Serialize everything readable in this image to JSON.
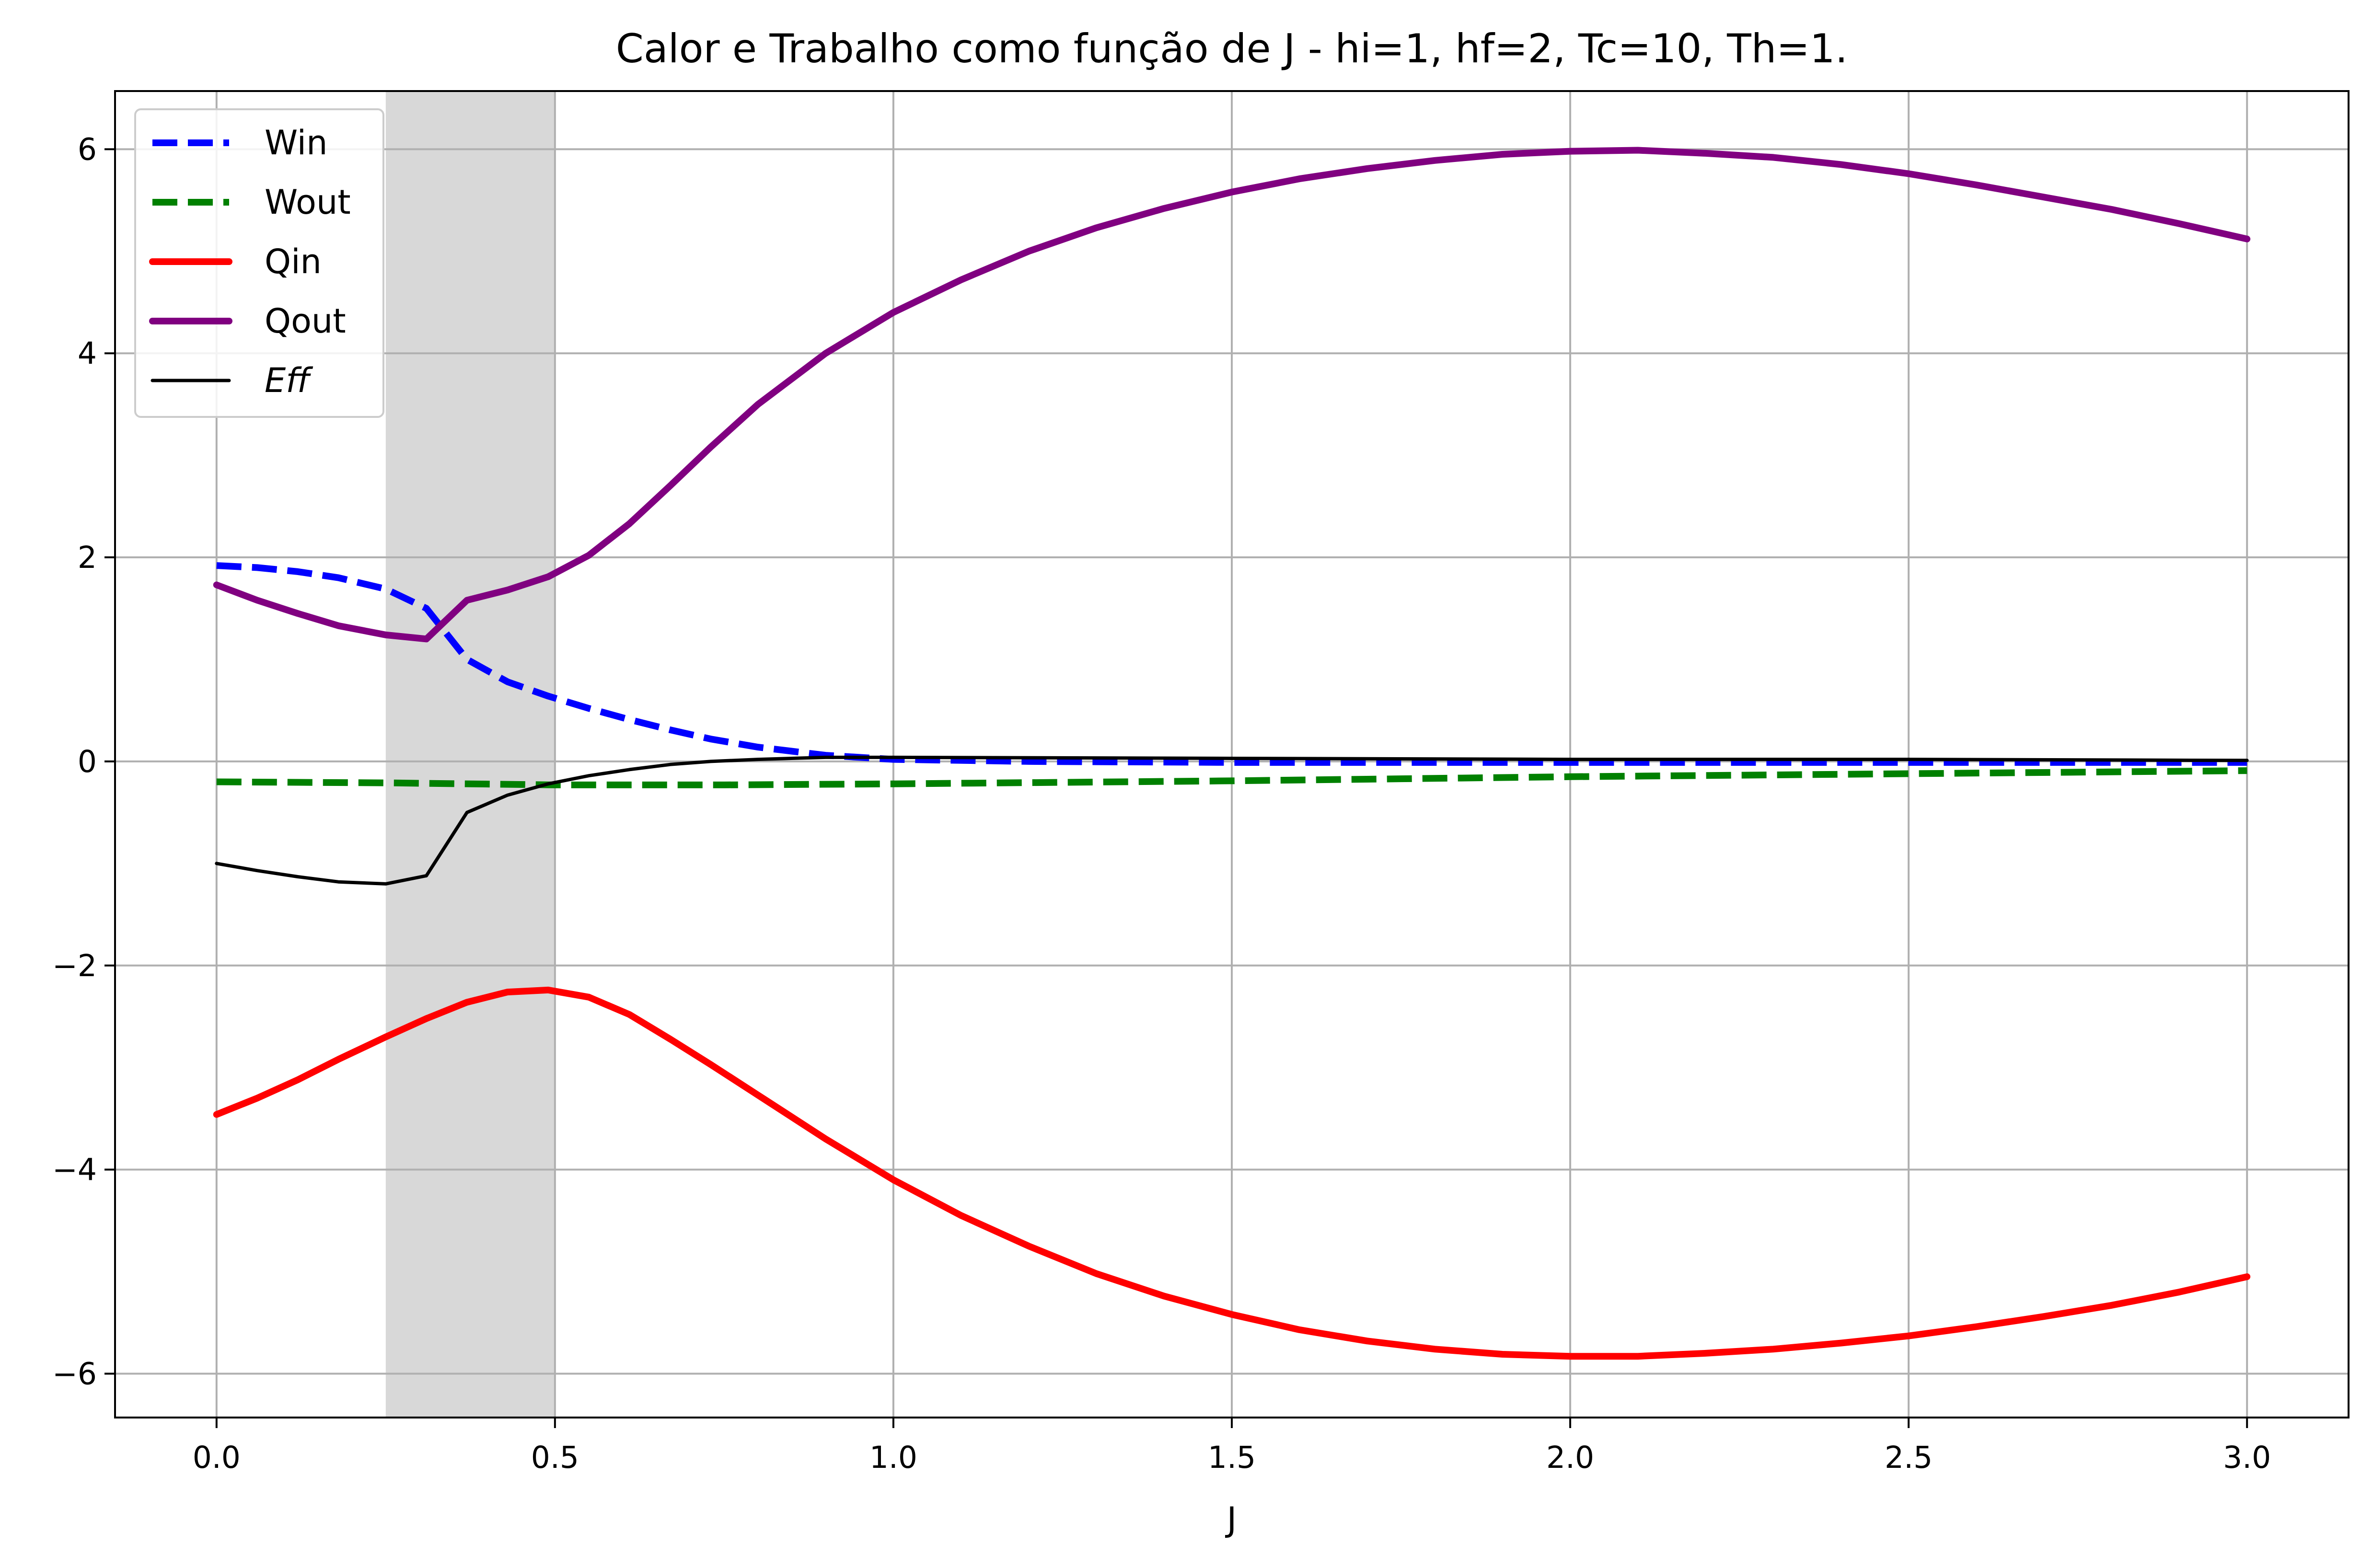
{
  "chart_data": {
    "type": "line",
    "title": "Calor e Trabalho como função de J - hi=1, hf=2, Tc=10, Th=1.",
    "xlabel": "J",
    "ylabel": "",
    "xlim": [
      -0.15,
      3.15
    ],
    "ylim": [
      -6.43,
      6.57
    ],
    "xticks": [
      0.0,
      0.5,
      1.0,
      1.5,
      2.0,
      2.5,
      3.0
    ],
    "xtick_labels": [
      "0.0",
      "0.5",
      "1.0",
      "1.5",
      "2.0",
      "2.5",
      "3.0"
    ],
    "yticks": [
      -6,
      -4,
      -2,
      0,
      2,
      4,
      6
    ],
    "ytick_labels": [
      "−6",
      "−4",
      "−2",
      "0",
      "2",
      "4",
      "6"
    ],
    "grid": true,
    "legend_position": "upper-left",
    "shaded_region": {
      "x_start": 0.25,
      "x_end": 0.5,
      "color": "#d8d8d8"
    },
    "series": [
      {
        "name": "Win",
        "color": "#0000ff",
        "style": "dashed",
        "width": "thick",
        "x": [
          0.0,
          0.06,
          0.12,
          0.18,
          0.25,
          0.31,
          0.37,
          0.43,
          0.49,
          0.55,
          0.61,
          0.67,
          0.73,
          0.8,
          0.9,
          1.0,
          1.2,
          1.5,
          2.0,
          2.5,
          3.0
        ],
        "y": [
          1.92,
          1.9,
          1.86,
          1.8,
          1.69,
          1.5,
          1.0,
          0.78,
          0.64,
          0.52,
          0.41,
          0.31,
          0.22,
          0.14,
          0.06,
          0.02,
          0.0,
          -0.01,
          -0.01,
          -0.01,
          -0.01
        ]
      },
      {
        "name": "Wout",
        "color": "#008000",
        "style": "dashed",
        "width": "thick",
        "x": [
          0.0,
          0.25,
          0.5,
          0.75,
          1.0,
          1.5,
          2.0,
          2.5,
          3.0
        ],
        "y": [
          -0.2,
          -0.21,
          -0.23,
          -0.23,
          -0.22,
          -0.19,
          -0.15,
          -0.12,
          -0.09
        ]
      },
      {
        "name": "Qin",
        "color": "#ff0000",
        "style": "solid",
        "width": "thick",
        "x": [
          0.0,
          0.06,
          0.12,
          0.18,
          0.25,
          0.31,
          0.37,
          0.43,
          0.49,
          0.55,
          0.61,
          0.67,
          0.73,
          0.8,
          0.9,
          1.0,
          1.1,
          1.2,
          1.3,
          1.4,
          1.5,
          1.6,
          1.7,
          1.8,
          1.9,
          2.0,
          2.1,
          2.2,
          2.3,
          2.4,
          2.5,
          2.6,
          2.7,
          2.8,
          2.9,
          3.0
        ],
        "y": [
          -3.46,
          -3.3,
          -3.12,
          -2.92,
          -2.7,
          -2.52,
          -2.36,
          -2.26,
          -2.24,
          -2.31,
          -2.48,
          -2.72,
          -2.97,
          -3.27,
          -3.7,
          -4.1,
          -4.45,
          -4.75,
          -5.02,
          -5.24,
          -5.42,
          -5.57,
          -5.68,
          -5.76,
          -5.81,
          -5.83,
          -5.83,
          -5.8,
          -5.76,
          -5.7,
          -5.63,
          -5.54,
          -5.44,
          -5.33,
          -5.2,
          -5.05
        ]
      },
      {
        "name": "Qout",
        "color": "#800080",
        "style": "solid",
        "width": "thick",
        "x": [
          0.0,
          0.06,
          0.12,
          0.18,
          0.25,
          0.31,
          0.37,
          0.43,
          0.49,
          0.55,
          0.61,
          0.67,
          0.73,
          0.8,
          0.9,
          1.0,
          1.1,
          1.2,
          1.3,
          1.4,
          1.5,
          1.6,
          1.7,
          1.8,
          1.9,
          2.0,
          2.1,
          2.2,
          2.3,
          2.4,
          2.5,
          2.6,
          2.7,
          2.8,
          2.9,
          3.0
        ],
        "y": [
          1.73,
          1.58,
          1.45,
          1.33,
          1.24,
          1.2,
          1.58,
          1.68,
          1.81,
          2.02,
          2.33,
          2.7,
          3.08,
          3.5,
          4.0,
          4.4,
          4.72,
          5.0,
          5.23,
          5.42,
          5.58,
          5.71,
          5.81,
          5.89,
          5.95,
          5.98,
          5.99,
          5.96,
          5.92,
          5.85,
          5.76,
          5.65,
          5.53,
          5.41,
          5.27,
          5.12
        ]
      },
      {
        "name": "Eff",
        "color": "#000000",
        "style": "solid",
        "width": "thin",
        "x": [
          0.0,
          0.06,
          0.12,
          0.18,
          0.25,
          0.31,
          0.37,
          0.43,
          0.49,
          0.55,
          0.61,
          0.67,
          0.73,
          0.8,
          0.9,
          1.0,
          1.5,
          2.0,
          2.5,
          3.0
        ],
        "y": [
          -1.0,
          -1.07,
          -1.13,
          -1.18,
          -1.2,
          -1.12,
          -0.5,
          -0.33,
          -0.22,
          -0.14,
          -0.08,
          -0.03,
          0.0,
          0.02,
          0.04,
          0.04,
          0.03,
          0.02,
          0.02,
          0.01
        ]
      }
    ]
  }
}
